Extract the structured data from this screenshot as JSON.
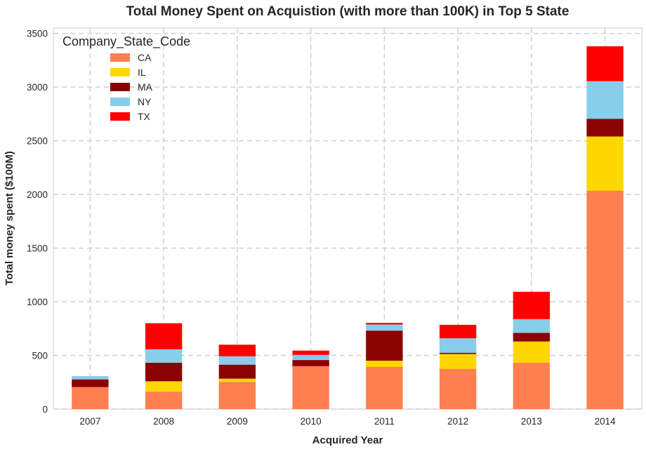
{
  "chart_data": {
    "type": "bar",
    "stacked": true,
    "title": "Total Money Spent on Acquistion (with more than 100K) in Top 5 State",
    "xlabel": "Acquired Year",
    "ylabel": "Total money spent ($100M)",
    "categories": [
      "2007",
      "2008",
      "2009",
      "2010",
      "2011",
      "2012",
      "2013",
      "2014"
    ],
    "ylim": [
      0,
      3550
    ],
    "yticks": [
      0,
      500,
      1000,
      1500,
      2000,
      2500,
      3000,
      3500
    ],
    "grid": true,
    "legend": {
      "title": "Company_State_Code",
      "placement": "top-left"
    },
    "series": [
      {
        "name": "CA",
        "color": "#FF7F50",
        "values": [
          205,
          162,
          252,
          400,
          393,
          375,
          432,
          2035
        ]
      },
      {
        "name": "IL",
        "color": "#FFD700",
        "values": [
          0,
          97,
          32,
          0,
          58,
          138,
          198,
          505
        ]
      },
      {
        "name": "MA",
        "color": "#8B0000",
        "values": [
          72,
          173,
          130,
          57,
          280,
          12,
          80,
          165
        ]
      },
      {
        "name": "NY",
        "color": "#87CEEB",
        "values": [
          30,
          125,
          78,
          48,
          57,
          135,
          128,
          350
        ]
      },
      {
        "name": "TX",
        "color": "#FF0000",
        "values": [
          0,
          243,
          108,
          40,
          15,
          125,
          255,
          325
        ]
      }
    ]
  }
}
